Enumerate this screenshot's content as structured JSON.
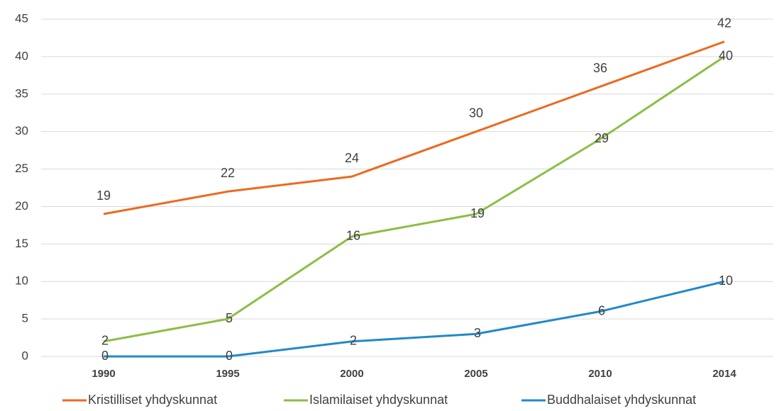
{
  "chart_data": {
    "type": "line",
    "categories": [
      "1990",
      "1995",
      "2000",
      "2005",
      "2010",
      "2014"
    ],
    "series": [
      {
        "name": "Kristilliset yhdyskunnat",
        "color": "#ec6a1e",
        "values": [
          19,
          22,
          24,
          30,
          36,
          42
        ]
      },
      {
        "name": "Islamilaiset yhdyskunnat",
        "color": "#8cbe45",
        "values": [
          2,
          5,
          16,
          19,
          29,
          40
        ]
      },
      {
        "name": "Buddhalaiset yhdyskunnat",
        "color": "#2189c8",
        "values": [
          0,
          0,
          2,
          3,
          6,
          10
        ]
      }
    ],
    "ylim": [
      0,
      45
    ],
    "yticks": [
      0,
      5,
      10,
      15,
      20,
      25,
      30,
      35,
      40,
      45
    ],
    "grid": true,
    "legend": "bottom"
  }
}
